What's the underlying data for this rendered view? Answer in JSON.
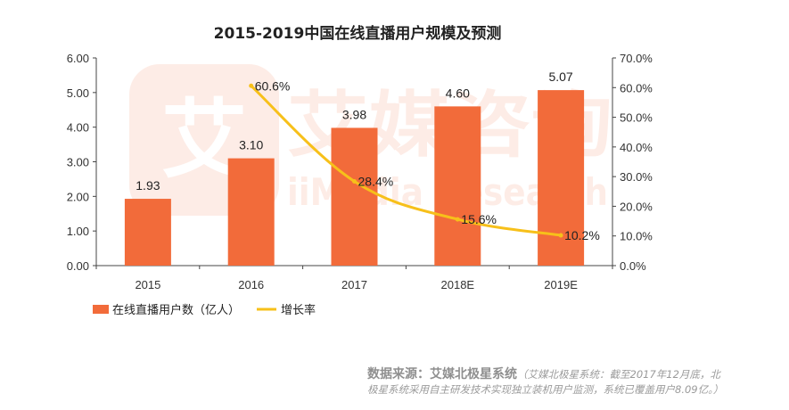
{
  "title": "2015-2019中国在线直播用户规模及预测",
  "watermark": {
    "brand_cn": "艾媒咨询",
    "brand_en": "iiMedia Research",
    "logo_char": "艾"
  },
  "chart_data": {
    "type": "bar",
    "categories": [
      "2015",
      "2016",
      "2017",
      "2018E",
      "2019E"
    ],
    "series": [
      {
        "name": "在线直播用户数（亿人）",
        "type": "bar",
        "axis": "left",
        "color": "#f26b3a",
        "values": [
          1.93,
          3.1,
          3.98,
          4.6,
          5.07
        ],
        "labels": [
          "1.93",
          "3.10",
          "3.98",
          "4.60",
          "5.07"
        ]
      },
      {
        "name": "增长率",
        "type": "line",
        "axis": "right",
        "color": "#f7c01a",
        "values": [
          null,
          60.6,
          28.4,
          15.6,
          10.2
        ],
        "labels": [
          "",
          "60.6%",
          "28.4%",
          "15.6%",
          "10.2%"
        ]
      }
    ],
    "y_left": {
      "ylim": [
        0,
        6
      ],
      "ticks": [
        "0.00",
        "1.00",
        "2.00",
        "3.00",
        "4.00",
        "5.00",
        "6.00"
      ]
    },
    "y_right": {
      "ylim": [
        0,
        70
      ],
      "ticks": [
        "0.0%",
        "10.0%",
        "20.0%",
        "30.0%",
        "40.0%",
        "50.0%",
        "60.0%",
        "70.0%"
      ]
    },
    "grid": false,
    "legend_position": "bottom-left",
    "xlabel": "",
    "ylabel": ""
  },
  "source": {
    "heading": "数据来源：艾媒北极星系统",
    "note_part1": "（艾媒北极星系统：截至2017年12月底，北",
    "note_part2": "极星系统采用自主研发技术实现独立装机用户监测，系统已覆盖用户8.09亿。）"
  }
}
